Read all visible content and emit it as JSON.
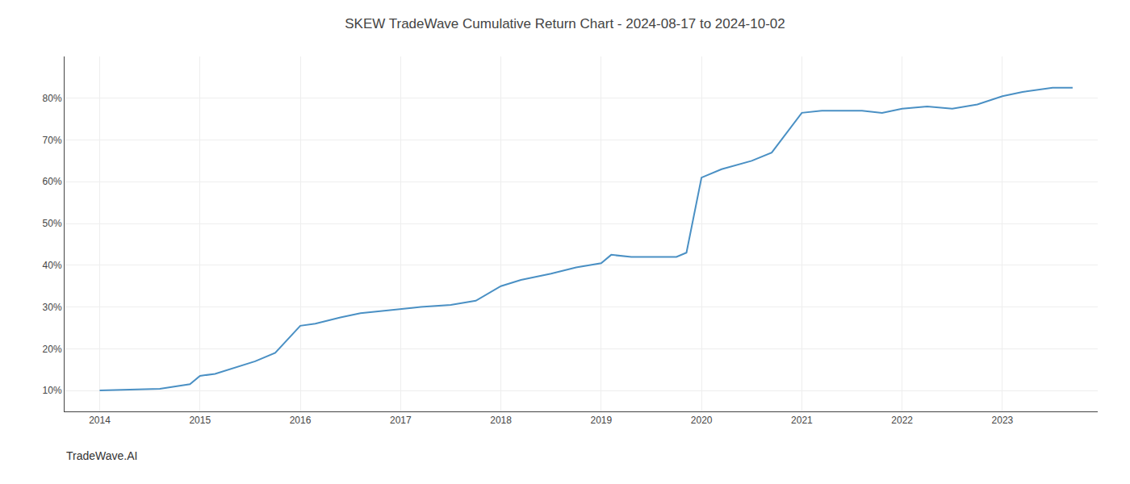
{
  "chart_data": {
    "type": "line",
    "title": "SKEW TradeWave Cumulative Return Chart - 2024-08-17 to 2024-10-02",
    "annotations": [
      "TradeWave.AI"
    ],
    "x": [
      2014.0,
      2014.3,
      2014.6,
      2014.9,
      2015.0,
      2015.15,
      2015.35,
      2015.55,
      2015.75,
      2016.0,
      2016.15,
      2016.4,
      2016.6,
      2016.8,
      2017.0,
      2017.2,
      2017.5,
      2017.75,
      2018.0,
      2018.2,
      2018.5,
      2018.75,
      2019.0,
      2019.1,
      2019.3,
      2019.6,
      2019.75,
      2019.85,
      2020.0,
      2020.2,
      2020.5,
      2020.7,
      2021.0,
      2021.2,
      2021.4,
      2021.6,
      2021.8,
      2022.0,
      2022.25,
      2022.5,
      2022.75,
      2023.0,
      2023.2,
      2023.5,
      2023.7
    ],
    "values": [
      10.0,
      10.2,
      10.4,
      11.5,
      13.5,
      14.0,
      15.5,
      17.0,
      19.0,
      25.5,
      26.0,
      27.5,
      28.5,
      29.0,
      29.5,
      30.0,
      30.5,
      31.5,
      35.0,
      36.5,
      38.0,
      39.5,
      40.5,
      42.5,
      42.0,
      42.0,
      42.0,
      43.0,
      61.0,
      63.0,
      65.0,
      67.0,
      76.5,
      77.0,
      77.0,
      77.0,
      76.5,
      77.5,
      78.0,
      77.5,
      78.5,
      80.5,
      81.5,
      82.5,
      82.5
    ],
    "color": "#4a90c4",
    "xlim": [
      2013.65,
      2023.95
    ],
    "xticks": [
      2014,
      2015,
      2016,
      2017,
      2018,
      2019,
      2020,
      2021,
      2022,
      2023
    ],
    "ylim": [
      5,
      90
    ],
    "yticks": [
      {
        "value": 10,
        "label": "10%"
      },
      {
        "value": 20,
        "label": "20%"
      },
      {
        "value": 30,
        "label": "30%"
      },
      {
        "value": 40,
        "label": "40%"
      },
      {
        "value": 50,
        "label": "50%"
      },
      {
        "value": 60,
        "label": "60%"
      },
      {
        "value": 70,
        "label": "70%"
      },
      {
        "value": 80,
        "label": "80%"
      }
    ],
    "grid": true
  }
}
